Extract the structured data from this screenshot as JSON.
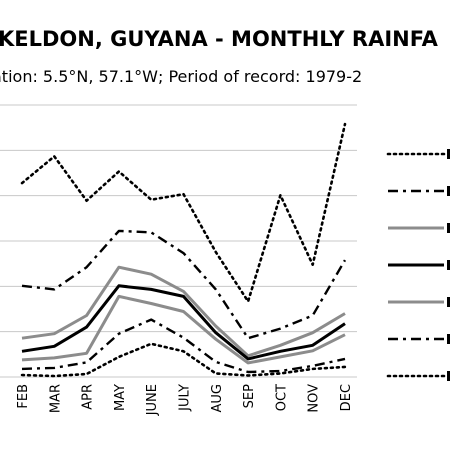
{
  "chart_data": {
    "type": "line",
    "title": "KELDON, GUYANA - MONTHLY RAINFA",
    "subtitle": "ation: 5.5°N, 57.1°W; Period of record: 1979-2",
    "categories": [
      "FEB",
      "MAR",
      "APR",
      "MAY",
      "JUNE",
      "JULY",
      "AUG",
      "SEP",
      "OCT",
      "NOV",
      "DEC"
    ],
    "ylim": [
      0,
      540
    ],
    "grid": true,
    "legend_position": "right",
    "series": [
      {
        "style": "dotted",
        "color": "#000000",
        "values": [
          385,
          438,
          350,
          408,
          352,
          363,
          248,
          150,
          361,
          223,
          502
        ]
      },
      {
        "style": "dashdot",
        "color": "#000000",
        "values": [
          181,
          174,
          218,
          290,
          287,
          246,
          174,
          77,
          96,
          122,
          232
        ]
      },
      {
        "style": "solid-gray",
        "color": "#8c8c8c",
        "values": [
          77,
          86,
          122,
          218,
          204,
          170,
          101,
          42,
          63,
          88,
          126
        ]
      },
      {
        "style": "solid-black",
        "color": "#000000",
        "values": [
          51,
          61,
          99,
          181,
          174,
          160,
          88,
          36,
          51,
          63,
          106
        ]
      },
      {
        "style": "solid-gray",
        "color": "#8c8c8c",
        "values": [
          34,
          38,
          47,
          160,
          146,
          130,
          75,
          28,
          40,
          52,
          84
        ]
      },
      {
        "style": "dashdot",
        "color": "#000000",
        "values": [
          16,
          18,
          29,
          86,
          114,
          78,
          30,
          10,
          12,
          22,
          36
        ]
      },
      {
        "style": "dotted",
        "color": "#000000",
        "values": [
          4,
          2,
          6,
          40,
          66,
          51,
          7,
          3,
          7,
          16,
          20
        ]
      }
    ]
  }
}
